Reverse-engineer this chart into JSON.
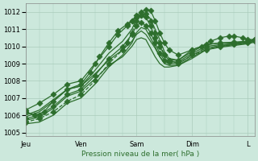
{
  "xlabel": "Pression niveau de la mer( hPa )",
  "bg_color": "#cce8dc",
  "grid_color": "#aaccbb",
  "line_color": "#2d6e2d",
  "ylim": [
    1004.8,
    1012.5
  ],
  "yticks": [
    1005,
    1006,
    1007,
    1008,
    1009,
    1010,
    1011,
    1012
  ],
  "x_day_labels": [
    "Jeu",
    "Ven",
    "Sam",
    "Dim",
    "L"
  ],
  "x_day_positions": [
    0,
    24,
    48,
    72,
    96
  ],
  "xlim": [
    0,
    99
  ],
  "series": [
    {
      "points": [
        [
          0,
          1005.6
        ],
        [
          6,
          1005.8
        ],
        [
          12,
          1006.2
        ],
        [
          18,
          1006.8
        ],
        [
          24,
          1007.2
        ],
        [
          30,
          1008.0
        ],
        [
          36,
          1009.0
        ],
        [
          42,
          1009.8
        ],
        [
          44,
          1010.2
        ],
        [
          46,
          1010.8
        ],
        [
          48,
          1011.5
        ],
        [
          50,
          1011.8
        ],
        [
          52,
          1011.9
        ],
        [
          54,
          1011.5
        ],
        [
          56,
          1010.8
        ],
        [
          58,
          1010.2
        ],
        [
          60,
          1009.5
        ],
        [
          62,
          1009.2
        ],
        [
          66,
          1009.0
        ],
        [
          72,
          1009.5
        ],
        [
          78,
          1009.8
        ],
        [
          84,
          1010.0
        ],
        [
          90,
          1010.1
        ],
        [
          96,
          1010.2
        ],
        [
          99,
          1010.3
        ]
      ],
      "marker": true,
      "linestyle": "--"
    },
    {
      "points": [
        [
          0,
          1005.8
        ],
        [
          6,
          1006.0
        ],
        [
          12,
          1006.5
        ],
        [
          18,
          1007.2
        ],
        [
          24,
          1007.5
        ],
        [
          30,
          1008.3
        ],
        [
          36,
          1009.3
        ],
        [
          42,
          1010.0
        ],
        [
          46,
          1010.7
        ],
        [
          48,
          1011.2
        ],
        [
          50,
          1011.4
        ],
        [
          52,
          1011.2
        ],
        [
          54,
          1010.8
        ],
        [
          56,
          1010.2
        ],
        [
          58,
          1009.6
        ],
        [
          60,
          1009.2
        ],
        [
          62,
          1009.1
        ],
        [
          66,
          1009.1
        ],
        [
          72,
          1009.6
        ],
        [
          78,
          1010.0
        ],
        [
          84,
          1010.1
        ],
        [
          90,
          1010.15
        ],
        [
          96,
          1010.25
        ],
        [
          99,
          1010.35
        ]
      ],
      "marker": true,
      "linestyle": "-"
    },
    {
      "points": [
        [
          0,
          1006.0
        ],
        [
          6,
          1006.3
        ],
        [
          12,
          1006.9
        ],
        [
          18,
          1007.5
        ],
        [
          24,
          1007.7
        ],
        [
          30,
          1008.6
        ],
        [
          36,
          1009.6
        ],
        [
          42,
          1010.3
        ],
        [
          46,
          1011.0
        ],
        [
          48,
          1011.6
        ],
        [
          50,
          1011.85
        ],
        [
          52,
          1011.9
        ],
        [
          54,
          1011.6
        ],
        [
          56,
          1011.0
        ],
        [
          58,
          1010.4
        ],
        [
          60,
          1009.7
        ],
        [
          62,
          1009.3
        ],
        [
          66,
          1009.2
        ],
        [
          72,
          1009.7
        ],
        [
          78,
          1010.1
        ],
        [
          84,
          1010.2
        ],
        [
          90,
          1010.2
        ],
        [
          96,
          1010.3
        ],
        [
          99,
          1010.4
        ]
      ],
      "marker": false,
      "linestyle": "-"
    },
    {
      "points": [
        [
          0,
          1006.2
        ],
        [
          4,
          1006.0
        ],
        [
          8,
          1006.2
        ],
        [
          12,
          1006.8
        ],
        [
          18,
          1007.5
        ],
        [
          24,
          1007.8
        ],
        [
          28,
          1008.5
        ],
        [
          32,
          1009.4
        ],
        [
          36,
          1010.2
        ],
        [
          40,
          1010.9
        ],
        [
          44,
          1011.3
        ],
        [
          46,
          1011.5
        ],
        [
          48,
          1011.65
        ],
        [
          50,
          1011.8
        ],
        [
          52,
          1011.7
        ],
        [
          54,
          1011.2
        ],
        [
          56,
          1010.5
        ],
        [
          58,
          1010.0
        ],
        [
          60,
          1009.5
        ],
        [
          62,
          1009.2
        ],
        [
          66,
          1009.2
        ],
        [
          72,
          1009.8
        ],
        [
          78,
          1010.1
        ],
        [
          84,
          1010.2
        ],
        [
          90,
          1010.25
        ],
        [
          96,
          1010.3
        ],
        [
          99,
          1010.4
        ]
      ],
      "marker": true,
      "linestyle": "-"
    },
    {
      "points": [
        [
          0,
          1005.5
        ],
        [
          6,
          1005.6
        ],
        [
          12,
          1006.0
        ],
        [
          18,
          1006.7
        ],
        [
          24,
          1007.0
        ],
        [
          30,
          1007.8
        ],
        [
          36,
          1008.8
        ],
        [
          42,
          1009.5
        ],
        [
          46,
          1010.2
        ],
        [
          48,
          1010.8
        ],
        [
          50,
          1011.1
        ],
        [
          52,
          1011.0
        ],
        [
          54,
          1010.5
        ],
        [
          56,
          1010.0
        ],
        [
          58,
          1009.4
        ],
        [
          60,
          1009.0
        ],
        [
          62,
          1008.9
        ],
        [
          66,
          1008.9
        ],
        [
          72,
          1009.3
        ],
        [
          78,
          1009.8
        ],
        [
          84,
          1010.0
        ],
        [
          90,
          1010.1
        ],
        [
          96,
          1010.2
        ],
        [
          99,
          1010.3
        ]
      ],
      "marker": false,
      "linestyle": "-"
    },
    {
      "points": [
        [
          0,
          1005.9
        ],
        [
          6,
          1006.2
        ],
        [
          12,
          1006.8
        ],
        [
          18,
          1007.5
        ],
        [
          24,
          1007.7
        ],
        [
          30,
          1008.4
        ],
        [
          36,
          1009.2
        ],
        [
          42,
          1009.8
        ],
        [
          46,
          1010.3
        ],
        [
          48,
          1010.7
        ],
        [
          50,
          1010.9
        ],
        [
          52,
          1010.7
        ],
        [
          54,
          1010.3
        ],
        [
          56,
          1009.9
        ],
        [
          58,
          1009.4
        ],
        [
          60,
          1009.1
        ],
        [
          62,
          1009.0
        ],
        [
          66,
          1009.0
        ],
        [
          72,
          1009.5
        ],
        [
          78,
          1009.9
        ],
        [
          84,
          1010.05
        ],
        [
          90,
          1010.15
        ],
        [
          96,
          1010.25
        ],
        [
          99,
          1010.35
        ]
      ],
      "marker": false,
      "linestyle": "-"
    },
    {
      "points": [
        [
          0,
          1006.3
        ],
        [
          6,
          1006.7
        ],
        [
          12,
          1007.2
        ],
        [
          18,
          1007.8
        ],
        [
          24,
          1008.0
        ],
        [
          30,
          1009.0
        ],
        [
          36,
          1010.0
        ],
        [
          40,
          1010.7
        ],
        [
          44,
          1011.2
        ],
        [
          46,
          1011.5
        ],
        [
          48,
          1011.8
        ],
        [
          50,
          1012.0
        ],
        [
          52,
          1012.15
        ],
        [
          54,
          1012.1
        ],
        [
          56,
          1011.5
        ],
        [
          58,
          1010.8
        ],
        [
          60,
          1010.2
        ],
        [
          62,
          1009.8
        ],
        [
          66,
          1009.5
        ],
        [
          72,
          1009.8
        ],
        [
          76,
          1010.0
        ],
        [
          80,
          1010.3
        ],
        [
          84,
          1010.5
        ],
        [
          88,
          1010.6
        ],
        [
          90,
          1010.6
        ],
        [
          94,
          1010.5
        ],
        [
          96,
          1010.4
        ],
        [
          99,
          1010.4
        ]
      ],
      "marker": true,
      "linestyle": "-"
    },
    {
      "points": [
        [
          0,
          1005.7
        ],
        [
          6,
          1005.9
        ],
        [
          12,
          1006.4
        ],
        [
          18,
          1007.1
        ],
        [
          24,
          1007.4
        ],
        [
          30,
          1008.1
        ],
        [
          36,
          1008.9
        ],
        [
          42,
          1009.4
        ],
        [
          46,
          1010.0
        ],
        [
          48,
          1010.4
        ],
        [
          50,
          1010.5
        ],
        [
          52,
          1010.4
        ],
        [
          54,
          1009.9
        ],
        [
          56,
          1009.4
        ],
        [
          58,
          1009.0
        ],
        [
          60,
          1008.8
        ],
        [
          62,
          1008.8
        ],
        [
          66,
          1008.9
        ],
        [
          72,
          1009.4
        ],
        [
          78,
          1009.8
        ],
        [
          84,
          1009.95
        ],
        [
          90,
          1010.05
        ],
        [
          96,
          1010.15
        ],
        [
          99,
          1010.25
        ]
      ],
      "marker": false,
      "linestyle": "-"
    }
  ],
  "line_width": 0.9,
  "marker_size": 3.5
}
